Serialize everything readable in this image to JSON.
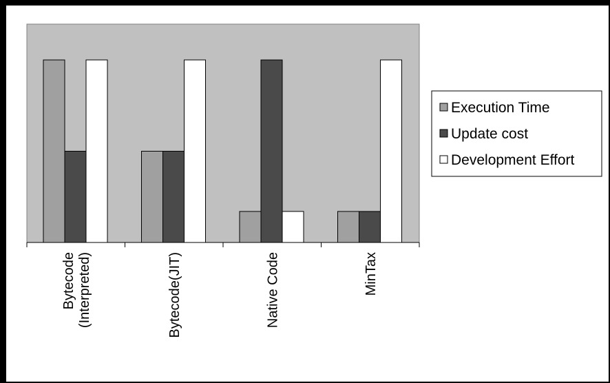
{
  "chart_data": {
    "type": "bar",
    "title": "",
    "xlabel": "",
    "ylabel": "",
    "ylim": [
      0,
      100
    ],
    "grid": false,
    "legend_position": "right",
    "categories": [
      [
        "Bytecode",
        "(Interpreted)"
      ],
      [
        "Bytecode(JIT)"
      ],
      [
        "Native Code"
      ],
      [
        "MinTax"
      ]
    ],
    "series": [
      {
        "name": "Execution Time",
        "values": [
          100,
          50,
          17,
          17
        ],
        "color": "#a0a0a0"
      },
      {
        "name": "Update cost",
        "values": [
          50,
          50,
          100,
          17
        ],
        "color": "#4a4a4a"
      },
      {
        "name": "Development Effort",
        "values": [
          100,
          100,
          17,
          100
        ],
        "color": "#ffffff"
      }
    ],
    "colors": {
      "plot_background": "#c0c0c0",
      "chart_background": "#ffffff",
      "page_background": "#000000",
      "outline": "#000000"
    }
  }
}
